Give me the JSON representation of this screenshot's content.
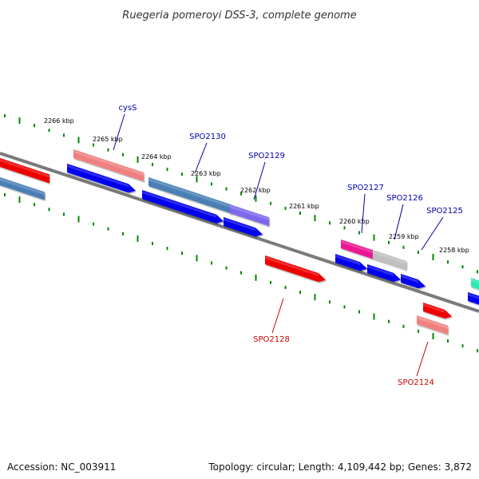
{
  "title": "Ruegeria pomeroyi DSS-3, complete genome",
  "footer": {
    "accession": "Accession: NC_003911",
    "topology": "Topology: circular; Length: 4,109,442 bp; Genes: 3,872"
  },
  "scale_labels": [
    {
      "kbp": 2266,
      "label": "2266 kbp"
    },
    {
      "kbp": 2265,
      "label": "2265 kbp"
    },
    {
      "kbp": 2264,
      "label": "2264 kbp"
    },
    {
      "kbp": 2263,
      "label": "2263 kbp"
    },
    {
      "kbp": 2262,
      "label": "2262 kbp"
    },
    {
      "kbp": 2261,
      "label": "2261 kbp"
    },
    {
      "kbp": 2260,
      "label": "2260 kbp"
    },
    {
      "kbp": 2259,
      "label": "2259 kbp"
    },
    {
      "kbp": 2258,
      "label": "2258 kbp"
    }
  ],
  "gene_labels": [
    {
      "name": "cysS",
      "strand": "forward",
      "color": "#0000aa"
    },
    {
      "name": "SPO2130",
      "strand": "forward",
      "color": "#0000aa"
    },
    {
      "name": "SPO2129",
      "strand": "forward",
      "color": "#0000aa"
    },
    {
      "name": "SPO2127",
      "strand": "forward",
      "color": "#0000aa"
    },
    {
      "name": "SPO2126",
      "strand": "forward",
      "color": "#0000aa"
    },
    {
      "name": "SPO2125",
      "strand": "forward",
      "color": "#0000aa"
    },
    {
      "name": "SPO2128",
      "strand": "reverse",
      "color": "#cc0000"
    },
    {
      "name": "SPO2124",
      "strand": "reverse",
      "color": "#cc0000"
    }
  ],
  "colors": {
    "backbone": "#7a7a7a",
    "tick": "#008800",
    "cds_forward": "#0000ee",
    "cds_reverse": "#ee0000",
    "feature_salmon": "#f08080",
    "feature_steelblue": "#4a7fb5",
    "feature_purple": "#7b68ee",
    "feature_pink": "#ee1493",
    "feature_gray": "#c0c0c0",
    "feature_teal": "#2ee8b0",
    "feature_red": "#ee0000"
  }
}
